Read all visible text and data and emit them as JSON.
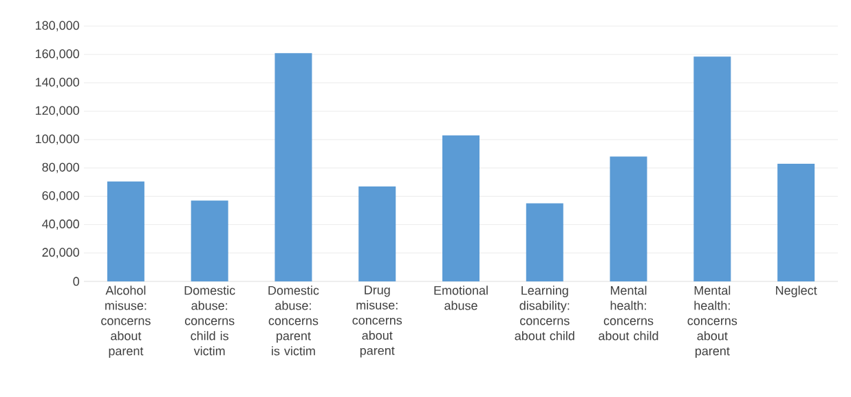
{
  "chart_data": {
    "type": "bar",
    "categories": [
      "Alcohol misuse: concerns about parent",
      "Domestic abuse: concerns child is victim",
      "Domestic abuse: concerns parent is victim",
      "Drug misuse: concerns about parent",
      "Emotional abuse",
      "Learning disability: concerns about child",
      "Mental health: concerns about child",
      "Mental health: concerns about parent",
      "Neglect"
    ],
    "values": [
      70500,
      57000,
      161000,
      67000,
      103000,
      55000,
      88000,
      158500,
      83000
    ],
    "color": "#5b9bd5",
    "ylim": [
      0,
      180000
    ],
    "yticks": [
      {
        "value": 0,
        "label": "0"
      },
      {
        "value": 20000,
        "label": "20,000"
      },
      {
        "value": 40000,
        "label": "40,000"
      },
      {
        "value": 60000,
        "label": "60,000"
      },
      {
        "value": 80000,
        "label": "80,000"
      },
      {
        "value": 100000,
        "label": "100,000"
      },
      {
        "value": 120000,
        "label": "120,000"
      },
      {
        "value": 140000,
        "label": "140,000"
      },
      {
        "value": 160000,
        "label": "160,000"
      },
      {
        "value": 180000,
        "label": "180,000"
      }
    ],
    "grid": "y"
  }
}
